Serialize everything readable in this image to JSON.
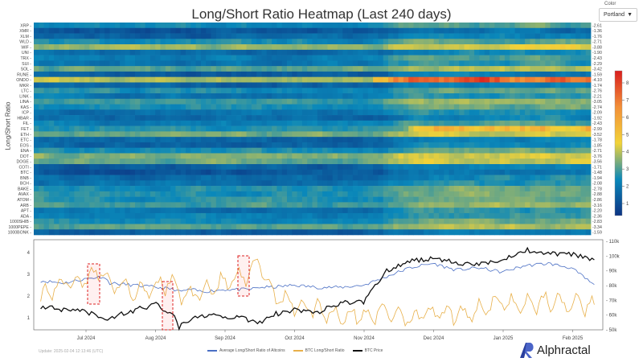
{
  "title": "Long/Short Ratio Heatmap (Last 240 days)",
  "color_select": {
    "label": "Color",
    "value": "Portland"
  },
  "footer": {
    "update": "Update: 2025-02-04 12:13:46 (UTC)",
    "brand": "Alphractal"
  },
  "chart_data": [
    {
      "type": "heatmap",
      "title": "Long/Short Ratio Heatmap (Last 240 days)",
      "ylabel": "Long/Short Ratio",
      "rows": [
        "XRP",
        "XMR",
        "XLM",
        "WLD",
        "WIF",
        "UNI",
        "TRX",
        "SUI",
        "SOL",
        "RUNE",
        "ONDO",
        "MKR",
        "LTC",
        "LINK",
        "LINA",
        "KAS",
        "ICP",
        "HBAR",
        "FIL",
        "FET",
        "ETH",
        "ETC",
        "EOS",
        "ENA",
        "DOT",
        "DOGE",
        "COTI",
        "BTC",
        "BNB",
        "BCH",
        "BAKE",
        "AVAX",
        "ATOM",
        "ARB",
        "APT",
        "ADA",
        "1000SHIB",
        "1000PEPE",
        "1000BONK"
      ],
      "latest_values": [
        "2.61",
        "1.36",
        "1.76",
        "2.71",
        "3.88",
        "1.90",
        "2.43",
        "2.29",
        "3.42",
        "1.59",
        "4.10",
        "1.74",
        "2.76",
        "2.21",
        "3.05",
        "2.74",
        "2.09",
        "1.92",
        "2.43",
        "2.99",
        "3.52",
        "1.78",
        "1.85",
        "2.71",
        "3.76",
        "3.56",
        "1.71",
        "1.48",
        "1.94",
        "2.08",
        "2.78",
        "2.88",
        "2.86",
        "3.16",
        "2.20",
        "2.36",
        "2.83",
        "3.34",
        "1.59"
      ],
      "colorscale": "Portland",
      "colorbar_ticks": [
        1,
        2,
        3,
        4,
        5,
        6,
        7,
        8
      ],
      "zrange": [
        0.3,
        8.7
      ]
    },
    {
      "type": "line",
      "x_ticks": [
        "Jul 2024",
        "Aug 2024",
        "Sep 2024",
        "Oct 2024",
        "Nov 2024",
        "Dec 2024",
        "Jan 2025",
        "Feb 2025"
      ],
      "y_left_ticks": [
        "1",
        "2",
        "3",
        "4"
      ],
      "y_right_ticks": [
        "50k",
        "60k",
        "70k",
        "80k",
        "90k",
        "100k",
        "110k"
      ],
      "x_days_keypoints": [
        0,
        10,
        20,
        27,
        30,
        40,
        50,
        58,
        60,
        65,
        70,
        80,
        90,
        95,
        100,
        110,
        120,
        130,
        140,
        150,
        155,
        160,
        170,
        180,
        190,
        200,
        210,
        220,
        230,
        240
      ],
      "series": [
        {
          "name": "Average Long/Short Ratio of Altcoins",
          "color": "#4a6fc4",
          "axis": "left",
          "values": [
            2.7,
            2.6,
            2.8,
            2.9,
            2.6,
            2.5,
            2.4,
            2.3,
            2.2,
            2.3,
            2.2,
            2.3,
            2.3,
            2.4,
            2.4,
            2.5,
            2.4,
            2.4,
            2.5,
            2.9,
            3.1,
            3.3,
            3.5,
            3.2,
            3.3,
            3.1,
            3.4,
            3.5,
            3.3,
            2.5
          ]
        },
        {
          "name": "BTC Long/Short Ratio",
          "color": "#e8b04a",
          "axis": "left",
          "values": [
            2.0,
            2.6,
            2.8,
            3.2,
            2.6,
            2.2,
            2.5,
            2.6,
            2.1,
            2.0,
            2.3,
            2.6,
            2.9,
            3.6,
            2.2,
            1.6,
            1.4,
            1.1,
            1.1,
            1.3,
            1.2,
            1.0,
            1.2,
            1.1,
            1.4,
            1.7,
            1.6,
            1.8,
            1.6,
            1.6
          ]
        },
        {
          "name": "BTC Price",
          "color": "#111111",
          "axis": "right",
          "values": [
            66000,
            63000,
            62000,
            57000,
            58000,
            63000,
            67000,
            60000,
            52000,
            58000,
            60000,
            59000,
            57000,
            55000,
            60000,
            64000,
            62000,
            68000,
            69000,
            90000,
            93000,
            97000,
            98000,
            96000,
            94000,
            98000,
            104000,
            102000,
            101000,
            98000
          ]
        }
      ],
      "highlight_boxes": [
        "early Jul 2024",
        "early Aug 2024",
        "early Sep 2024"
      ]
    }
  ]
}
